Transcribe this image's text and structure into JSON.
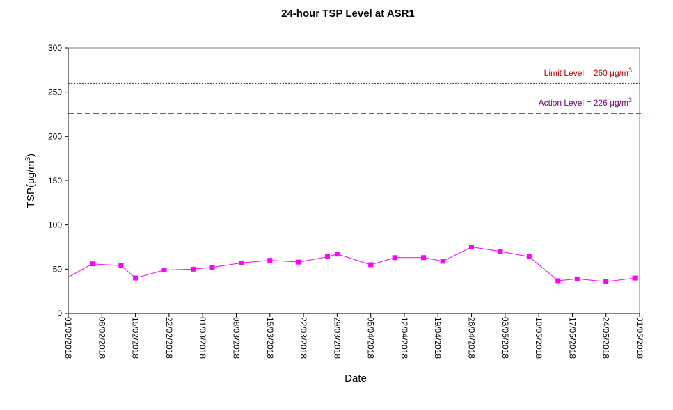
{
  "chart_data": {
    "type": "line",
    "title": "24-hour TSP Level at ASR1",
    "xlabel": "Date",
    "ylabel": "TSP(μg/m3)",
    "ylabel_main": "TSP(μg/m",
    "ylabel_sup": "3",
    "ylabel_close": ")",
    "ylim": [
      0,
      300
    ],
    "yticks": [
      0,
      50,
      100,
      150,
      200,
      250,
      300
    ],
    "xlim": [
      "01/02/2018",
      "31/05/2018"
    ],
    "xticks": [
      "01/02/2018",
      "08/02/2018",
      "15/02/2018",
      "22/02/2018",
      "01/03/2018",
      "08/03/2018",
      "15/03/2018",
      "22/03/2018",
      "29/03/2018",
      "05/04/2018",
      "12/04/2018",
      "19/04/2018",
      "26/04/2018",
      "03/05/2018",
      "10/05/2018",
      "17/05/2018",
      "24/05/2018",
      "31/05/2018"
    ],
    "grid": false,
    "series": [
      {
        "color": "#ff00ff",
        "marker": "square",
        "x": [
          "01/02/2018",
          "06/02/2018",
          "12/02/2018",
          "15/02/2018",
          "21/02/2018",
          "27/02/2018",
          "03/03/2018",
          "09/03/2018",
          "15/03/2018",
          "21/03/2018",
          "27/03/2018",
          "29/03/2018",
          "05/04/2018",
          "10/04/2018",
          "16/04/2018",
          "20/04/2018",
          "26/04/2018",
          "02/05/2018",
          "08/05/2018",
          "14/05/2018",
          "18/05/2018",
          "24/05/2018",
          "30/05/2018"
        ],
        "values": [
          41,
          56,
          54,
          40,
          49,
          50,
          52,
          57,
          60,
          58,
          64,
          67,
          55,
          63,
          63,
          59,
          75,
          70,
          64,
          37,
          39,
          36,
          40
        ]
      }
    ],
    "reference_lines": [
      {
        "value": 260,
        "color": "#cc0000",
        "style": "dotted",
        "label_main": "Limit Level  = 260 μg/m",
        "label_sup": "3"
      },
      {
        "value": 226,
        "color": "#800080",
        "style": "dashed",
        "label_main": "Action Level  = 226 μg/m",
        "label_sup": "3"
      }
    ]
  }
}
